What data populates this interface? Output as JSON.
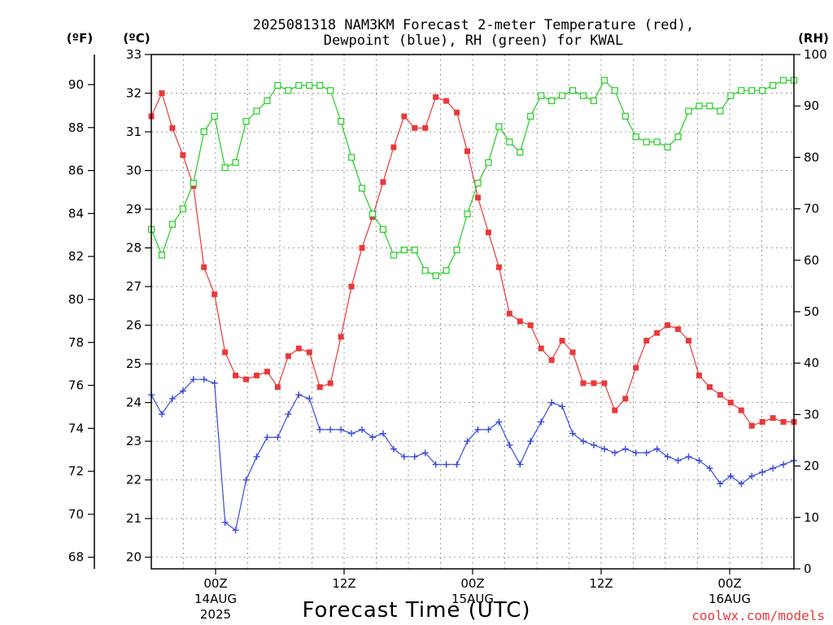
{
  "chart_data": {
    "type": "line",
    "title_lines": [
      "2025081318 NAM3KM Forecast 2-meter Temperature (red),",
      "Dewpoint (blue), RH (green) for KWAL"
    ],
    "xlabel": "Forecast Time (UTC)",
    "credit": "coolwx.com/models",
    "unit_labels": {
      "fahrenheit": "(ºF)",
      "celsius": "(ºC)",
      "rh": "(RH)"
    },
    "x_range_hours": [
      -5,
      45
    ],
    "x_ticks": [
      {
        "hour": 0,
        "lines": [
          "00Z",
          "14AUG",
          "2025"
        ]
      },
      {
        "hour": 10,
        "lines": [
          "12Z"
        ]
      },
      {
        "hour": 20,
        "lines": [
          "00Z",
          "15AUG"
        ]
      },
      {
        "hour": 30,
        "lines": [
          "12Z"
        ]
      },
      {
        "hour": 40,
        "lines": [
          "00Z",
          "16AUG"
        ]
      }
    ],
    "celsius_axis": {
      "min": 19.7,
      "max": 33.0,
      "ticks": [
        20,
        21,
        22,
        23,
        24,
        25,
        26,
        27,
        28,
        29,
        30,
        31,
        32,
        33
      ]
    },
    "fahrenheit_ticks": [
      68,
      70,
      72,
      74,
      76,
      78,
      80,
      82,
      84,
      86,
      88,
      90
    ],
    "rh_axis": {
      "min": 0,
      "max": 100,
      "ticks": [
        0,
        10,
        20,
        30,
        40,
        50,
        60,
        70,
        80,
        90,
        100
      ]
    },
    "grid": true,
    "series": [
      {
        "color": "#e8393c",
        "marker": "filled-square",
        "axis": "celsius",
        "values": [
          31.4,
          32.0,
          31.1,
          30.4,
          29.6,
          27.5,
          26.8,
          25.3,
          24.7,
          24.6,
          24.7,
          24.8,
          24.4,
          25.2,
          25.4,
          25.3,
          24.4,
          24.5,
          25.7,
          27.0,
          28.0,
          28.8,
          29.7,
          30.6,
          31.4,
          31.1,
          31.1,
          31.9,
          31.8,
          31.5,
          30.5,
          29.3,
          28.4,
          27.5,
          26.3,
          26.1,
          26.0,
          25.4,
          25.1,
          25.6,
          25.3,
          24.5,
          24.5,
          24.5,
          23.8,
          24.1,
          24.9,
          25.6,
          25.8,
          26.0,
          25.9,
          25.6,
          24.7,
          24.4,
          24.2,
          24.0,
          23.8,
          23.4,
          23.5,
          23.6,
          23.5,
          23.5
        ]
      },
      {
        "color": "#3a4bdb",
        "marker": "plus",
        "axis": "celsius",
        "values": [
          24.2,
          23.7,
          24.1,
          24.3,
          24.6,
          24.6,
          24.5,
          20.9,
          20.7,
          22.0,
          22.6,
          23.1,
          23.1,
          23.7,
          24.2,
          24.1,
          23.3,
          23.3,
          23.3,
          23.2,
          23.3,
          23.1,
          23.2,
          22.8,
          22.6,
          22.6,
          22.7,
          22.4,
          22.4,
          22.4,
          23.0,
          23.3,
          23.3,
          23.5,
          22.9,
          22.4,
          23.0,
          23.5,
          24.0,
          23.9,
          23.2,
          23.0,
          22.9,
          22.8,
          22.7,
          22.8,
          22.7,
          22.7,
          22.8,
          22.6,
          22.5,
          22.6,
          22.5,
          22.3,
          21.9,
          22.1,
          21.9,
          22.1,
          22.2,
          22.3,
          22.4,
          22.5
        ]
      },
      {
        "color": "#22cc22",
        "marker": "open-square",
        "axis": "rh",
        "values": [
          66,
          61,
          67,
          70,
          75,
          85,
          88,
          78,
          79,
          87,
          89,
          91,
          94,
          93,
          94,
          94,
          94,
          93,
          87,
          80,
          74,
          69,
          66,
          61,
          62,
          62,
          58,
          57,
          58,
          62,
          69,
          75,
          79,
          86,
          83,
          81,
          88,
          92,
          91,
          92,
          93,
          92,
          91,
          95,
          93,
          88,
          84,
          83,
          83,
          82,
          84,
          89,
          90,
          90,
          89,
          92,
          93,
          93,
          93,
          94,
          95,
          95
        ]
      }
    ]
  }
}
